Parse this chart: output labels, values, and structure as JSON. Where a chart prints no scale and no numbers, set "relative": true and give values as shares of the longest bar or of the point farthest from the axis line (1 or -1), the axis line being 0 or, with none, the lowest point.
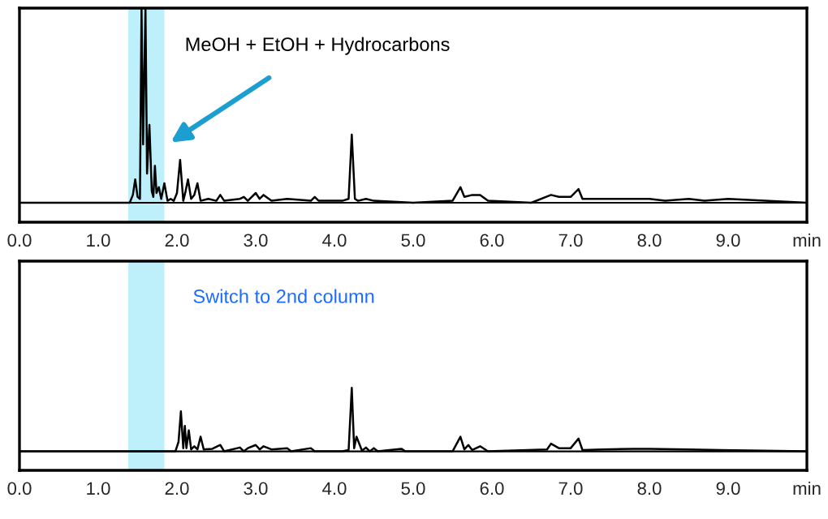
{
  "chart_data": [
    {
      "type": "line",
      "relative": true,
      "tick_labels": "x",
      "grid": false,
      "legend": false,
      "marker": "none",
      "line_style": "solid",
      "xlim": [
        0,
        10
      ],
      "xticks": [
        {
          "value": 0,
          "label": "0.0"
        },
        {
          "value": 1,
          "label": "1.0"
        },
        {
          "value": 2,
          "label": "2.0"
        },
        {
          "value": 3,
          "label": "3.0"
        },
        {
          "value": 4,
          "label": "4.0"
        },
        {
          "value": 5,
          "label": "5.0"
        },
        {
          "value": 6,
          "label": "6.0"
        },
        {
          "value": 7,
          "label": "7.0"
        },
        {
          "value": 8,
          "label": "8.0"
        },
        {
          "value": 9,
          "label": "9.0"
        },
        {
          "value": 10,
          "label": "min"
        }
      ],
      "bands": [
        {
          "axis": "x",
          "from": 1.38,
          "to": 1.84,
          "color": "#bdf0fb"
        }
      ],
      "annotations": [
        {
          "text": "MeOH + EtOH + Hydrocarbons",
          "x": 1.92,
          "y": 0.31
        }
      ],
      "series": [
        {
          "color": "#000000",
          "x": [
            0,
            1.4,
            1.44,
            1.47,
            1.5,
            1.53,
            1.55,
            1.57,
            1.6,
            1.62,
            1.65,
            1.68,
            1.7,
            1.72,
            1.74,
            1.77,
            1.8,
            1.84,
            1.88,
            1.92,
            1.96,
            2.0,
            2.04,
            2.08,
            2.11,
            2.14,
            2.18,
            2.22,
            2.26,
            2.3,
            2.4,
            2.5,
            2.55,
            2.6,
            2.8,
            2.85,
            2.9,
            3.0,
            3.05,
            3.1,
            3.2,
            3.4,
            3.7,
            3.75,
            3.8,
            4.1,
            4.18,
            4.22,
            4.26,
            4.3,
            4.4,
            4.5,
            5.0,
            5.5,
            5.6,
            5.65,
            5.75,
            5.85,
            5.95,
            6.5,
            6.75,
            6.85,
            7.0,
            7.1,
            7.15,
            7.3,
            7.5,
            7.8,
            8.0,
            8.2,
            8.5,
            8.7,
            9.0,
            10
          ],
          "values": [
            0,
            0,
            0.04,
            0.12,
            0.03,
            0.02,
            1,
            0.3,
            1,
            0.15,
            0.4,
            0.06,
            0.03,
            0.19,
            0.05,
            0.08,
            0.02,
            0.1,
            0.01,
            0.02,
            0.01,
            0.05,
            0.22,
            0.01,
            0.06,
            0.12,
            0.02,
            0.04,
            0.1,
            0.01,
            0.02,
            0.01,
            0.04,
            0.01,
            0.02,
            0.03,
            0.01,
            0.05,
            0.02,
            0.04,
            0.01,
            0.02,
            0.01,
            0.03,
            0.01,
            0.01,
            0.02,
            0.35,
            0.02,
            0.01,
            0.02,
            0.01,
            0,
            0.01,
            0.08,
            0.03,
            0.04,
            0.04,
            0.01,
            0,
            0.04,
            0.03,
            0.03,
            0.07,
            0.02,
            0.02,
            0.02,
            0.02,
            0.02,
            0.01,
            0.02,
            0.01,
            0.02,
            0
          ]
        }
      ]
    },
    {
      "type": "line",
      "relative": true,
      "tick_labels": "x",
      "grid": false,
      "legend": false,
      "marker": "none",
      "line_style": "solid",
      "xlim": [
        0,
        10
      ],
      "xticks": [
        {
          "value": 0,
          "label": "0.0"
        },
        {
          "value": 1,
          "label": "1.0"
        },
        {
          "value": 2,
          "label": "2.0"
        },
        {
          "value": 3,
          "label": "3.0"
        },
        {
          "value": 4,
          "label": "4.0"
        },
        {
          "value": 5,
          "label": "5.0"
        },
        {
          "value": 6,
          "label": "6.0"
        },
        {
          "value": 7,
          "label": "7.0"
        },
        {
          "value": 8,
          "label": "8.0"
        },
        {
          "value": 9,
          "label": "9.0"
        },
        {
          "value": 10,
          "label": "min"
        }
      ],
      "bands": [
        {
          "axis": "x",
          "from": 1.38,
          "to": 1.84,
          "color": "#bdf0fb"
        }
      ],
      "annotations": [
        "Switch to 2nd column"
      ],
      "series": [
        {
          "color": "#000000",
          "x": [
            0,
            1.98,
            2.02,
            2.05,
            2.08,
            2.1,
            2.12,
            2.15,
            2.18,
            2.22,
            2.26,
            2.3,
            2.34,
            2.45,
            2.55,
            2.6,
            2.8,
            2.85,
            2.9,
            3.0,
            3.05,
            3.1,
            3.2,
            3.4,
            3.45,
            3.7,
            3.75,
            4.1,
            4.18,
            4.22,
            4.25,
            4.28,
            4.35,
            4.4,
            4.45,
            4.5,
            4.55,
            4.85,
            4.9,
            5.5,
            5.6,
            5.65,
            5.7,
            5.75,
            5.85,
            5.95,
            6.7,
            6.75,
            6.85,
            7.0,
            7.1,
            7.15,
            7.4,
            7.8,
            8.0,
            8.5,
            8.9,
            10
          ],
          "values": [
            0,
            0,
            0.15,
            0.63,
            0.05,
            0.4,
            0.05,
            0.33,
            0.03,
            0.08,
            0.03,
            0.23,
            0.03,
            0.04,
            0.1,
            0,
            0.06,
            0,
            0.05,
            0.1,
            0.03,
            0.08,
            0.03,
            0.05,
            0,
            0.05,
            0,
            0,
            0.02,
            1,
            0.05,
            0.23,
            0.01,
            0.06,
            0,
            0.05,
            0,
            0.04,
            0,
            0,
            0.23,
            0.03,
            0.1,
            0.02,
            0.08,
            0,
            0.03,
            0.12,
            0.05,
            0.05,
            0.2,
            0.02,
            0.03,
            0.04,
            0.04,
            0.03,
            0.02,
            0
          ]
        }
      ]
    }
  ]
}
